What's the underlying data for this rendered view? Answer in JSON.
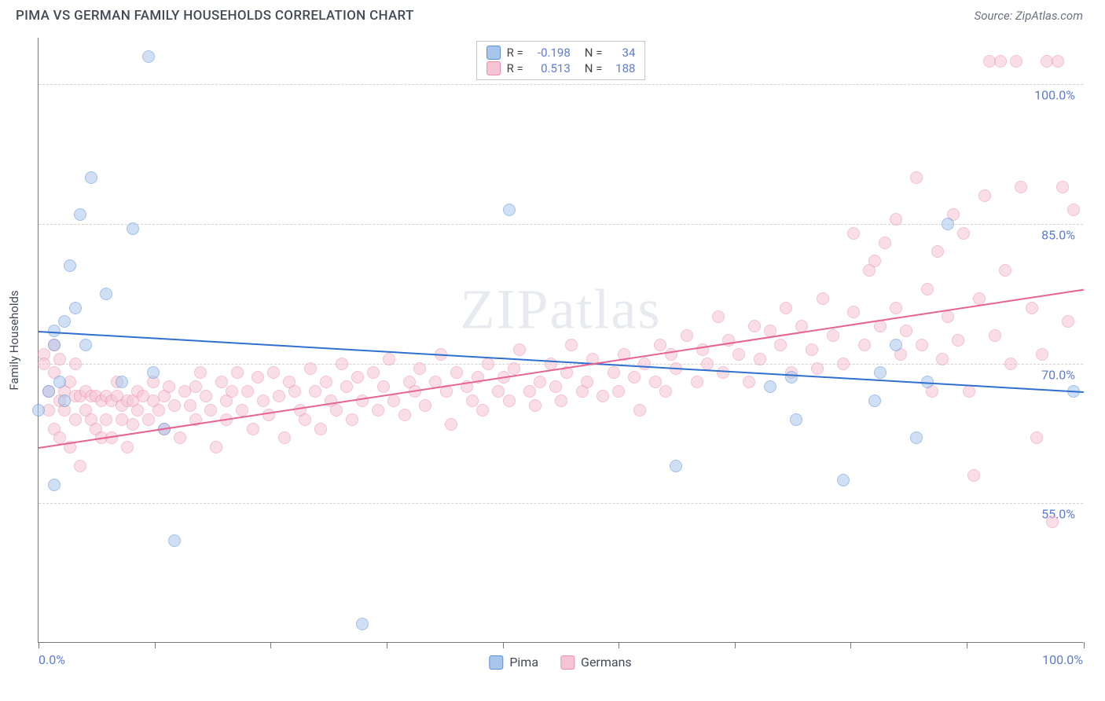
{
  "header": {
    "title": "PIMA VS GERMAN FAMILY HOUSEHOLDS CORRELATION CHART",
    "source_label": "Source: ZipAtlas.com"
  },
  "watermark": "ZIPatlas",
  "chart": {
    "type": "scatter",
    "ylabel": "Family Households",
    "xlim": [
      0,
      100
    ],
    "ylim": [
      40,
      105
    ],
    "y_ticks": [
      {
        "v": 55.0,
        "label": "55.0%"
      },
      {
        "v": 70.0,
        "label": "70.0%"
      },
      {
        "v": 85.0,
        "label": "85.0%"
      },
      {
        "v": 100.0,
        "label": "100.0%"
      }
    ],
    "x_ticks_minor": [
      0,
      11.1,
      22.2,
      33.3,
      44.4,
      55.5,
      66.6,
      77.7,
      88.8,
      100
    ],
    "x_tick_labels": [
      {
        "v": 0,
        "label": "0.0%"
      },
      {
        "v": 100,
        "label": "100.0%"
      }
    ],
    "background_color": "#ffffff",
    "grid_color": "#d3d3d3",
    "axis_color": "#777777",
    "label_color": "#5b7bd5",
    "point_radius": 8,
    "point_opacity": 0.55,
    "series": [
      {
        "name": "Pima",
        "color_fill": "#a8c6ec",
        "color_stroke": "#5b8fd6",
        "legend": {
          "R": "-0.198",
          "N": "34"
        },
        "trend": {
          "x0": 0,
          "y0": 73.5,
          "x1": 100,
          "y1": 67.0,
          "color": "#2f6fd0",
          "width": 2
        },
        "points": [
          [
            0,
            65
          ],
          [
            1,
            67
          ],
          [
            1.5,
            72
          ],
          [
            1.5,
            73.5
          ],
          [
            1.5,
            57
          ],
          [
            2,
            68
          ],
          [
            2.5,
            74.5
          ],
          [
            2.5,
            66
          ],
          [
            3,
            80.5
          ],
          [
            3.5,
            76
          ],
          [
            4,
            86
          ],
          [
            4.5,
            72
          ],
          [
            5,
            90
          ],
          [
            6.5,
            77.5
          ],
          [
            8,
            68
          ],
          [
            9,
            84.5
          ],
          [
            10.5,
            103
          ],
          [
            11,
            69
          ],
          [
            12,
            63
          ],
          [
            13,
            51
          ],
          [
            31,
            42
          ],
          [
            45,
            86.5
          ],
          [
            61,
            59
          ],
          [
            70,
            67.5
          ],
          [
            72,
            68.5
          ],
          [
            72.5,
            64
          ],
          [
            77,
            57.5
          ],
          [
            80,
            66
          ],
          [
            80.5,
            69
          ],
          [
            82,
            72
          ],
          [
            84,
            62
          ],
          [
            85,
            68
          ],
          [
            87,
            85
          ],
          [
            99,
            67
          ]
        ]
      },
      {
        "name": "Germans",
        "color_fill": "#f6c4d3",
        "color_stroke": "#e98fb0",
        "legend": {
          "R": "0.513",
          "N": "188"
        },
        "trend": {
          "x0": 0,
          "y0": 61.0,
          "x1": 100,
          "y1": 78.0,
          "color": "#e76394",
          "width": 2
        },
        "points": [
          [
            0.5,
            71
          ],
          [
            0.5,
            70
          ],
          [
            1,
            67
          ],
          [
            1,
            65
          ],
          [
            1.5,
            63
          ],
          [
            1.5,
            72
          ],
          [
            1.5,
            69
          ],
          [
            2,
            66
          ],
          [
            2,
            70.5
          ],
          [
            2,
            62
          ],
          [
            2.5,
            67
          ],
          [
            2.5,
            65
          ],
          [
            3,
            61
          ],
          [
            3,
            68
          ],
          [
            3.5,
            66.5
          ],
          [
            3.5,
            64
          ],
          [
            3.5,
            70
          ],
          [
            4,
            66.5
          ],
          [
            4,
            59
          ],
          [
            4.5,
            65
          ],
          [
            4.5,
            67
          ],
          [
            5,
            66.5
          ],
          [
            5,
            64
          ],
          [
            5.5,
            66.5
          ],
          [
            5.5,
            63
          ],
          [
            6,
            62
          ],
          [
            6,
            66
          ],
          [
            6.5,
            66.5
          ],
          [
            6.5,
            64
          ],
          [
            7,
            66
          ],
          [
            7,
            62
          ],
          [
            7.5,
            66.5
          ],
          [
            7.5,
            68
          ],
          [
            8,
            65.5
          ],
          [
            8,
            64
          ],
          [
            8.5,
            61
          ],
          [
            8.5,
            66
          ],
          [
            9,
            66
          ],
          [
            9,
            63.5
          ],
          [
            9.5,
            67
          ],
          [
            9.5,
            65
          ],
          [
            10,
            66.5
          ],
          [
            10.5,
            64
          ],
          [
            11,
            66
          ],
          [
            11,
            68
          ],
          [
            11.5,
            65
          ],
          [
            12,
            66.5
          ],
          [
            12,
            63
          ],
          [
            12.5,
            67.5
          ],
          [
            13,
            65.5
          ],
          [
            13.5,
            62
          ],
          [
            14,
            67
          ],
          [
            14.5,
            65.5
          ],
          [
            15,
            67.5
          ],
          [
            15,
            64
          ],
          [
            15.5,
            69
          ],
          [
            16,
            66.5
          ],
          [
            16.5,
            65
          ],
          [
            17,
            61
          ],
          [
            17.5,
            68
          ],
          [
            18,
            66
          ],
          [
            18,
            64
          ],
          [
            18.5,
            67
          ],
          [
            19,
            69
          ],
          [
            19.5,
            65
          ],
          [
            20,
            67
          ],
          [
            20.5,
            63
          ],
          [
            21,
            68.5
          ],
          [
            21.5,
            66
          ],
          [
            22,
            64.5
          ],
          [
            22.5,
            69
          ],
          [
            23,
            66.5
          ],
          [
            23.5,
            62
          ],
          [
            24,
            68
          ],
          [
            24.5,
            67
          ],
          [
            25,
            65
          ],
          [
            25.5,
            64
          ],
          [
            26,
            69.5
          ],
          [
            26.5,
            67
          ],
          [
            27,
            63
          ],
          [
            27.5,
            68
          ],
          [
            28,
            66
          ],
          [
            28.5,
            65
          ],
          [
            29,
            70
          ],
          [
            29.5,
            67.5
          ],
          [
            30,
            64
          ],
          [
            30.5,
            68.5
          ],
          [
            31,
            66
          ],
          [
            32,
            69
          ],
          [
            32.5,
            65
          ],
          [
            33,
            67.5
          ],
          [
            33.5,
            70.5
          ],
          [
            34,
            66
          ],
          [
            35,
            64.5
          ],
          [
            35.5,
            68
          ],
          [
            36,
            67
          ],
          [
            36.5,
            69.5
          ],
          [
            37,
            65.5
          ],
          [
            38,
            68
          ],
          [
            38.5,
            71
          ],
          [
            39,
            67
          ],
          [
            39.5,
            63.5
          ],
          [
            40,
            69
          ],
          [
            41,
            67.5
          ],
          [
            41.5,
            66
          ],
          [
            42,
            68.5
          ],
          [
            42.5,
            65
          ],
          [
            43,
            70
          ],
          [
            44,
            67
          ],
          [
            44.5,
            68.5
          ],
          [
            45,
            66
          ],
          [
            45.5,
            69.5
          ],
          [
            46,
            71.5
          ],
          [
            47,
            67
          ],
          [
            47.5,
            65.5
          ],
          [
            48,
            68
          ],
          [
            49,
            70
          ],
          [
            49.5,
            67.5
          ],
          [
            50,
            66
          ],
          [
            50.5,
            69
          ],
          [
            51,
            72
          ],
          [
            52,
            67
          ],
          [
            52.5,
            68
          ],
          [
            53,
            70.5
          ],
          [
            54,
            66.5
          ],
          [
            55,
            69
          ],
          [
            55.5,
            67
          ],
          [
            56,
            71
          ],
          [
            57,
            68.5
          ],
          [
            57.5,
            65
          ],
          [
            58,
            70
          ],
          [
            59,
            68
          ],
          [
            59.5,
            72
          ],
          [
            60,
            67
          ],
          [
            60.5,
            71
          ],
          [
            61,
            69.5
          ],
          [
            62,
            73
          ],
          [
            63,
            68
          ],
          [
            63.5,
            71.5
          ],
          [
            64,
            70
          ],
          [
            65,
            75
          ],
          [
            65.5,
            69
          ],
          [
            66,
            72.5
          ],
          [
            67,
            71
          ],
          [
            68,
            68
          ],
          [
            68.5,
            74
          ],
          [
            69,
            70.5
          ],
          [
            70,
            73.5
          ],
          [
            71,
            72
          ],
          [
            71.5,
            76
          ],
          [
            72,
            69
          ],
          [
            73,
            74
          ],
          [
            74,
            71.5
          ],
          [
            74.5,
            69.5
          ],
          [
            75,
            77
          ],
          [
            76,
            73
          ],
          [
            77,
            70
          ],
          [
            78,
            75.5
          ],
          [
            78,
            84
          ],
          [
            79,
            72
          ],
          [
            79.5,
            80
          ],
          [
            80,
            81
          ],
          [
            80.5,
            74
          ],
          [
            81,
            83
          ],
          [
            82,
            85.5
          ],
          [
            82,
            76
          ],
          [
            82.5,
            71
          ],
          [
            83,
            73.5
          ],
          [
            84,
            90
          ],
          [
            84.5,
            72
          ],
          [
            85,
            78
          ],
          [
            85.5,
            67
          ],
          [
            86,
            82
          ],
          [
            86.5,
            70.5
          ],
          [
            87,
            75
          ],
          [
            87.5,
            86
          ],
          [
            88,
            72.5
          ],
          [
            88.5,
            84
          ],
          [
            89,
            67
          ],
          [
            89.5,
            58
          ],
          [
            90,
            77
          ],
          [
            90.5,
            88
          ],
          [
            91,
            102.5
          ],
          [
            91.5,
            73
          ],
          [
            92,
            102.5
          ],
          [
            92.5,
            80
          ],
          [
            93,
            70
          ],
          [
            93.5,
            102.5
          ],
          [
            94,
            89
          ],
          [
            95,
            76
          ],
          [
            95.5,
            62
          ],
          [
            96,
            71
          ],
          [
            96.5,
            102.5
          ],
          [
            97,
            53
          ],
          [
            97.5,
            102.5
          ],
          [
            98,
            89
          ],
          [
            98.5,
            74.5
          ],
          [
            99,
            86.5
          ]
        ]
      }
    ],
    "legend_bottom": [
      {
        "swatch_fill": "#a8c6ec",
        "swatch_stroke": "#5b8fd6",
        "label": "Pima"
      },
      {
        "swatch_fill": "#f6c4d3",
        "swatch_stroke": "#e98fb0",
        "label": "Germans"
      }
    ]
  }
}
